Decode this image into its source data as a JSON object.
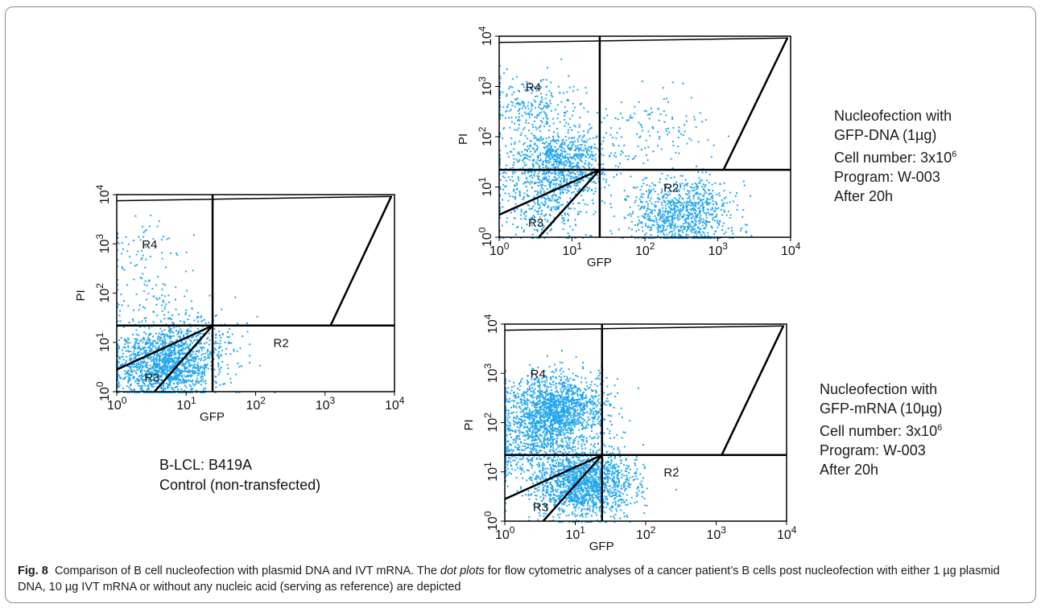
{
  "figure": {
    "caption_label": "Fig. 8",
    "caption_text_1": "Comparison of B cell nucleofection with plasmid DNA and IVT mRNA. The",
    "caption_italic": "dot plots",
    "caption_text_2": "for flow cytometric analyses of a cancer patient’s B cells post nucleofection with either 1 µg plasmid DNA, 10 µg IVT mRNA or without any nucleic acid (serving as reference) are depicted"
  },
  "control_info": {
    "line1": "B-LCL: B419A",
    "line2": "Control (non-transfected)"
  },
  "dna_info": {
    "line1": "Nucleofection with",
    "line2": "GFP-DNA (1µg)",
    "line3_prefix": "Cell number: 3x10",
    "line3_exp": "6",
    "line4": "Program: W-003",
    "line5": "After 20h"
  },
  "mrna_info": {
    "line1": "Nucleofection with",
    "line2": "GFP-mRNA (10µg)",
    "line3_prefix": "Cell number: 3x10",
    "line3_exp": "6",
    "line4": "Program: W-003",
    "line5": "After 20h"
  },
  "chart_data": [
    {
      "type": "scatter",
      "panel": "control",
      "xlabel": "GFP",
      "ylabel": "PI",
      "xscale": "log",
      "yscale": "log",
      "xlim": [
        1,
        10000
      ],
      "ylim": [
        1,
        10000
      ],
      "x_tick_base": "10",
      "x_tick_exponents": [
        "0",
        "1",
        "2",
        "3",
        "4"
      ],
      "y_tick_base": "10",
      "y_tick_exponents": [
        "0",
        "1",
        "2",
        "3",
        "4"
      ],
      "regions": [
        "R2",
        "R3",
        "R4"
      ],
      "point_color": "#21a6ee",
      "clusters": [
        {
          "x": 4.5,
          "y": 3.5,
          "n": 1400
        },
        {
          "x": 12,
          "y": 10,
          "n": 300
        },
        {
          "x": 2,
          "y": 800,
          "n": 60
        },
        {
          "x": 3,
          "y": 60,
          "n": 80
        }
      ]
    },
    {
      "type": "scatter",
      "panel": "dna",
      "xlabel": "GFP",
      "ylabel": "PI",
      "xscale": "log",
      "yscale": "log",
      "xlim": [
        1,
        10000
      ],
      "ylim": [
        1,
        10000
      ],
      "x_tick_base": "10",
      "x_tick_exponents": [
        "0",
        "1",
        "2",
        "3",
        "4"
      ],
      "y_tick_base": "10",
      "y_tick_exponents": [
        "0",
        "1",
        "2",
        "3",
        "4"
      ],
      "regions": [
        "R2",
        "R3",
        "R4"
      ],
      "point_color": "#21a6ee",
      "clusters": [
        {
          "x": 6,
          "y": 30,
          "n": 900
        },
        {
          "x": 3,
          "y": 400,
          "n": 250
        },
        {
          "x": 4,
          "y": 4,
          "n": 300
        },
        {
          "x": 300,
          "y": 3,
          "n": 900
        },
        {
          "x": 150,
          "y": 150,
          "n": 120
        }
      ]
    },
    {
      "type": "scatter",
      "panel": "mrna",
      "xlabel": "GFP",
      "ylabel": "PI",
      "xscale": "log",
      "yscale": "log",
      "xlim": [
        1,
        10000
      ],
      "ylim": [
        1,
        10000
      ],
      "x_tick_base": "10",
      "x_tick_exponents": [
        "0",
        "1",
        "2",
        "3",
        "4"
      ],
      "y_tick_base": "10",
      "y_tick_exponents": [
        "0",
        "1",
        "2",
        "3",
        "4"
      ],
      "regions": [
        "R2",
        "R3",
        "R4"
      ],
      "point_color": "#21a6ee",
      "clusters": [
        {
          "x": 5,
          "y": 200,
          "n": 1500
        },
        {
          "x": 12,
          "y": 6,
          "n": 1600
        },
        {
          "x": 2,
          "y": 40,
          "n": 500
        }
      ]
    }
  ]
}
